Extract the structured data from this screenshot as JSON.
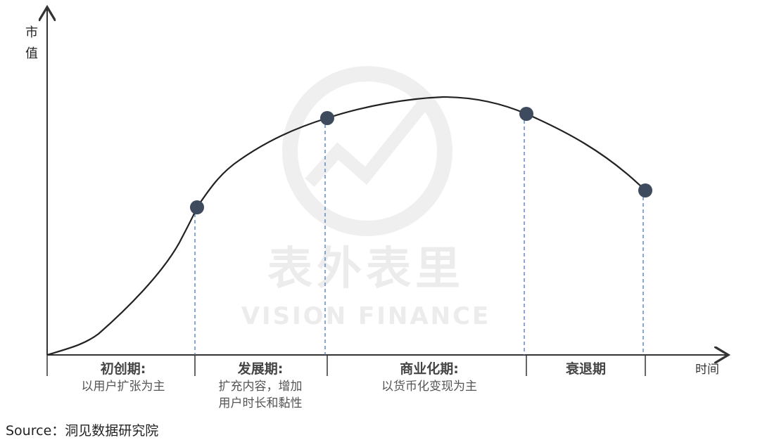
{
  "axes": {
    "y_label": "市值",
    "x_label": "时间"
  },
  "watermark": {
    "title": "表外表里",
    "subtitle": "VISION FINANCE"
  },
  "stages": [
    {
      "name": "初创期:",
      "desc": [
        "以用户扩张为主"
      ]
    },
    {
      "name": "发展期:",
      "desc": [
        "扩充内容，增加",
        "用户时长和黏性"
      ]
    },
    {
      "name": "商业化期:",
      "desc": [
        "以货币化变现为主"
      ]
    },
    {
      "name": "衰退期",
      "desc": []
    }
  ],
  "source": "Source：洞见数据研究院",
  "colors": {
    "curve": "#222222",
    "dot": "#3e4a5e",
    "dashed": "#4a78c0",
    "axis": "#333333"
  }
}
